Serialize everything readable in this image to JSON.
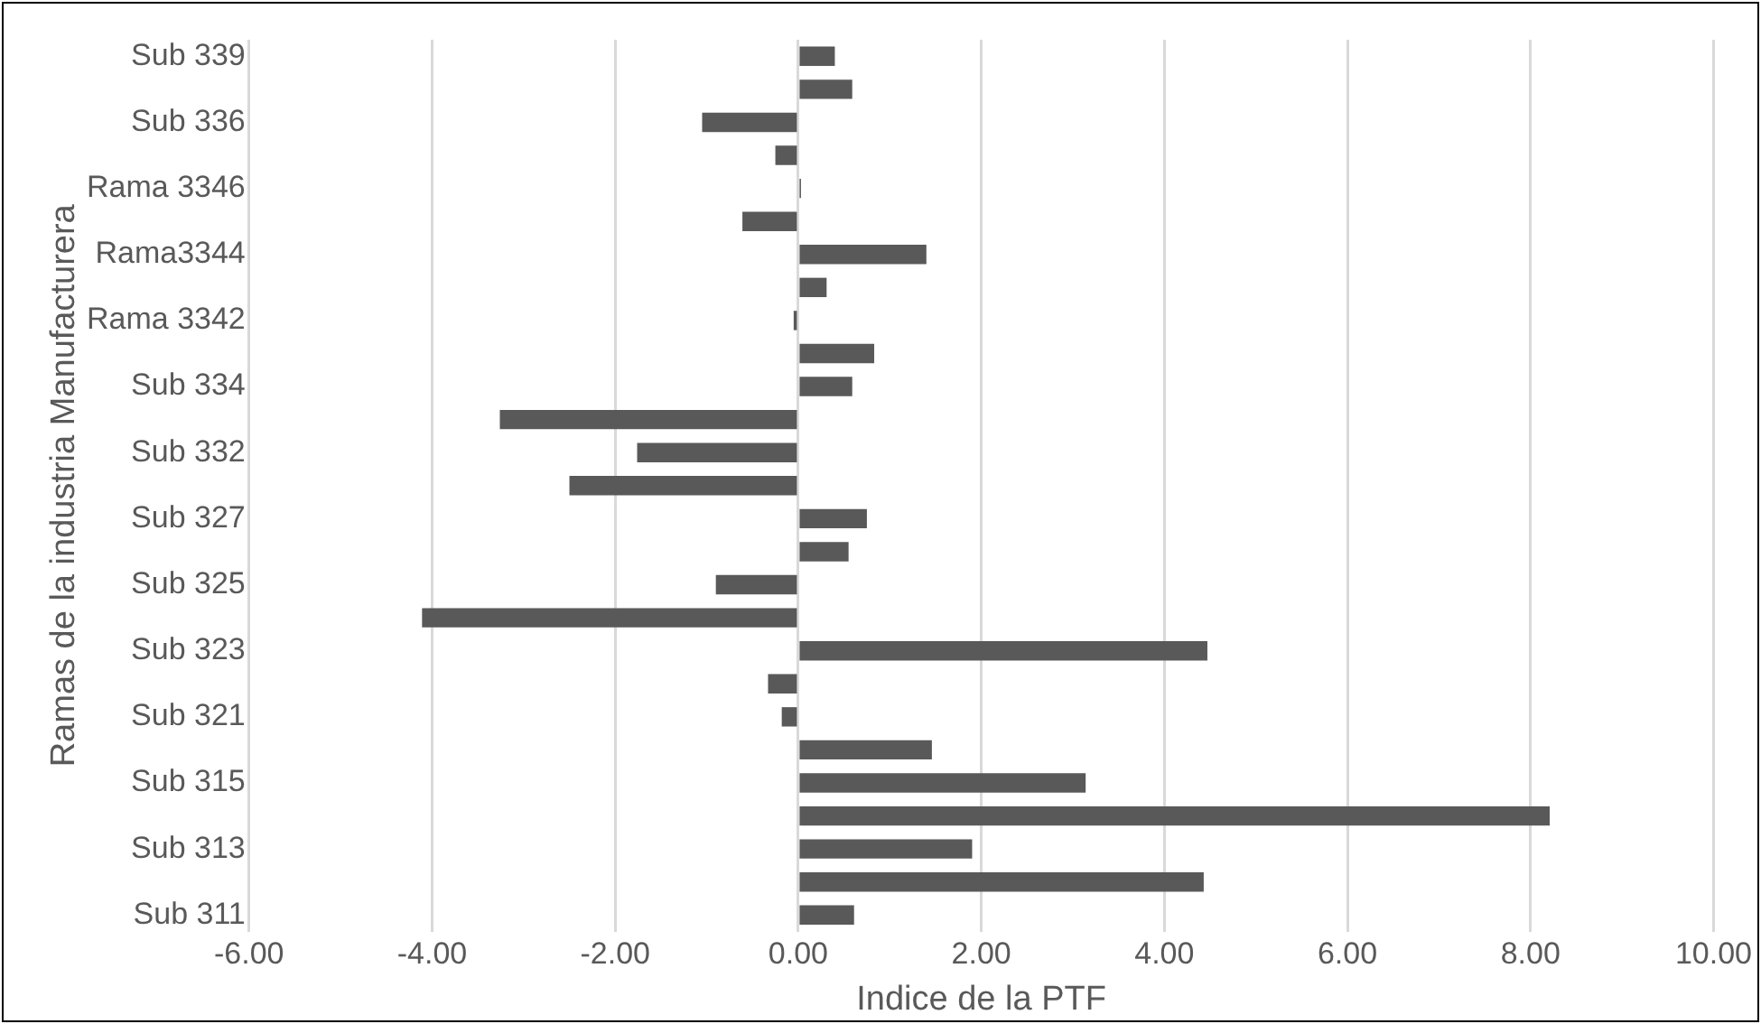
{
  "chart_data": {
    "type": "bar",
    "orientation": "horizontal",
    "xlabel": "Indice de la PTF",
    "ylabel": "Ramas de la industria Manufacturera",
    "categories": [
      "Sub 339",
      null,
      "Sub 336",
      null,
      "Rama 3346",
      null,
      "Rama3344",
      null,
      "Rama 3342",
      null,
      "Sub 334",
      null,
      "Sub 332",
      null,
      "Sub 327",
      null,
      "Sub 325",
      null,
      "Sub 323",
      null,
      "Sub 321",
      null,
      "Sub 315",
      null,
      "Sub 313",
      null,
      "Sub 311"
    ],
    "values": [
      0.4,
      0.59,
      -1.05,
      -0.25,
      0.03,
      -0.61,
      1.4,
      0.31,
      -0.05,
      0.83,
      0.59,
      -3.26,
      -1.76,
      -2.5,
      0.75,
      0.55,
      -0.9,
      -4.11,
      4.47,
      -0.33,
      -0.18,
      1.46,
      3.14,
      8.21,
      1.9,
      4.43,
      0.61
    ],
    "color": "#595959",
    "xlim": [
      -6,
      10
    ],
    "xticks": [
      {
        "value": -6,
        "label": "-6.00"
      },
      {
        "value": -4,
        "label": "-4.00"
      },
      {
        "value": -2,
        "label": "-2.00"
      },
      {
        "value": 0,
        "label": "0.00"
      },
      {
        "value": 2,
        "label": "2.00"
      },
      {
        "value": 4,
        "label": "4.00"
      },
      {
        "value": 6,
        "label": "6.00"
      },
      {
        "value": 8,
        "label": "8.00"
      },
      {
        "value": 10,
        "label": "10.00"
      }
    ],
    "grid": "x",
    "legend": false
  }
}
